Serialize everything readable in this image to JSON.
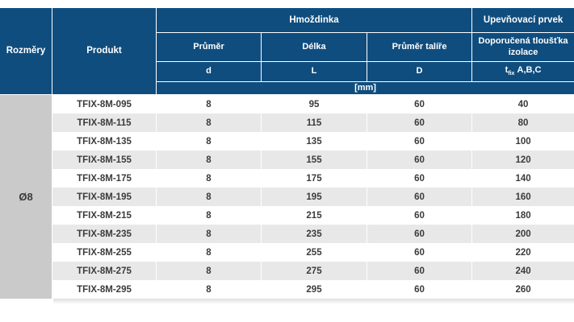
{
  "table": {
    "header": {
      "col_dimensions": "Rozměry",
      "col_product": "Produkt",
      "group_anchor": "Hmoždinka",
      "group_fixing": "Upevňovací prvek",
      "col_diameter": "Průměr",
      "col_length": "Délka",
      "col_plate": "Průměr talíře",
      "col_insulation": "Doporučená tloušťka izolace",
      "sym_d": "d",
      "sym_L": "L",
      "sym_D": "D",
      "sym_t": "t",
      "sym_t_sub": "fix",
      "sym_t_suffix": "A,B,C",
      "unit_row": "[mm]"
    },
    "dimension": "Ø8",
    "rows": [
      {
        "product": "TFIX-8M-095",
        "d": "8",
        "L": "95",
        "D": "60",
        "t": "40"
      },
      {
        "product": "TFIX-8M-115",
        "d": "8",
        "L": "115",
        "D": "60",
        "t": "80"
      },
      {
        "product": "TFIX-8M-135",
        "d": "8",
        "L": "135",
        "D": "60",
        "t": "100"
      },
      {
        "product": "TFIX-8M-155",
        "d": "8",
        "L": "155",
        "D": "60",
        "t": "120"
      },
      {
        "product": "TFIX-8M-175",
        "d": "8",
        "L": "175",
        "D": "60",
        "t": "140"
      },
      {
        "product": "TFIX-8M-195",
        "d": "8",
        "L": "195",
        "D": "60",
        "t": "160"
      },
      {
        "product": "TFIX-8M-215",
        "d": "8",
        "L": "215",
        "D": "60",
        "t": "180"
      },
      {
        "product": "TFIX-8M-235",
        "d": "8",
        "L": "235",
        "D": "60",
        "t": "200"
      },
      {
        "product": "TFIX-8M-255",
        "d": "8",
        "L": "255",
        "D": "60",
        "t": "220"
      },
      {
        "product": "TFIX-8M-275",
        "d": "8",
        "L": "275",
        "D": "60",
        "t": "240"
      },
      {
        "product": "TFIX-8M-295",
        "d": "8",
        "L": "295",
        "D": "60",
        "t": "260"
      }
    ]
  },
  "colors": {
    "header_bg": "#0f4d7e",
    "header_text": "#ffffff",
    "dimension_bg": "#cacaca",
    "stripe_bg": "#e8e8e8",
    "row_bg": "#ffffff",
    "data_text": "#3b3b3b",
    "separator": "#ffffff"
  }
}
